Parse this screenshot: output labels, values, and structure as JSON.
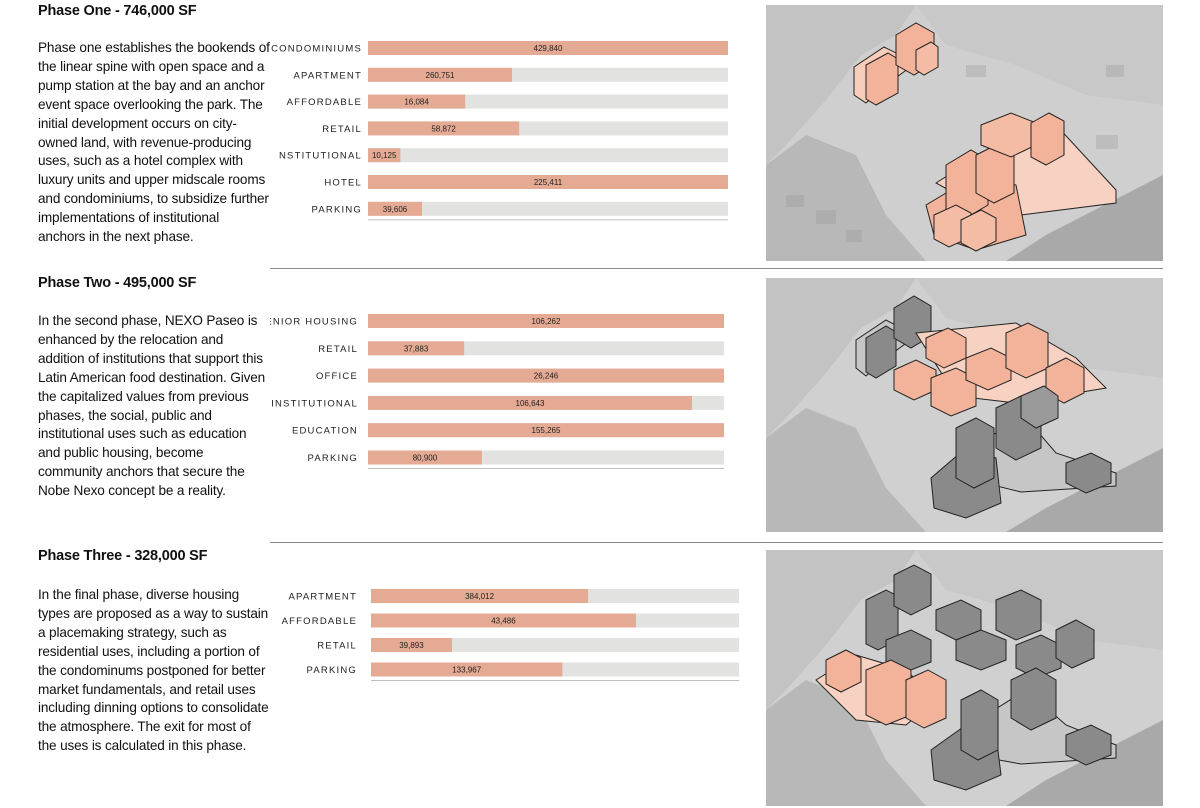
{
  "colors": {
    "bar_fill": "#e4aa93",
    "track": "#e2e3e0",
    "highlight_block": "#f2b39a",
    "grey_block": "#8a8a8a"
  },
  "sections": [
    {
      "title": "Phase One - 746,000 SF",
      "body": "Phase one establishes the bookends of the linear spine with open space and a pump station at the bay and an anchor event space overlooking the park. The initial development occurs on city-owned land, with revenue-producing uses, such as a hotel complex with luxury units and upper midscale rooms and condominiums, to subsidize further implementations of institutional anchors in the next phase."
    },
    {
      "title": "Phase Two - 495,000 SF",
      "body": "In the second phase, NEXO Paseo is enhanced by the relocation and addition of institutions that support this Latin American food destination. Given the capitalized values from previous phases, the social, public and institutional uses such as education and public housing, become community anchors that secure the Nobe Nexo concept be a reality."
    },
    {
      "title": "Phase Three - 328,000 SF",
      "body": "In the final phase, diverse housing types are proposed as a way to sustain a placemaking strategy, such as residential uses, including a portion of the condominums postponed for better market fundamentals, and retail uses including dinning options to consolidate the atmosphere. The exit for most of the uses is calculated in this phase."
    }
  ],
  "chart_data": [
    {
      "type": "bar",
      "orientation": "horizontal",
      "categories": [
        "CONDOMINIUMS",
        "APARTMENT",
        "AFFORDABLE",
        "RETAIL",
        "NSTITUTIONAL",
        "HOTEL",
        "PARKING"
      ],
      "values": [
        429840,
        260751,
        16084,
        58872,
        10125,
        225411,
        39606
      ],
      "labels": [
        "429,840",
        "260,751",
        "16,084",
        "58,872",
        "10,125",
        "225,411",
        "39,606"
      ],
      "fill_fraction": [
        1.0,
        0.4,
        0.27,
        0.42,
        0.09,
        1.0,
        0.15
      ]
    },
    {
      "type": "bar",
      "orientation": "horizontal",
      "categories": [
        "SENIOR HOUSING",
        "RETAIL",
        "OFFICE",
        "INSTITUTIONAL",
        "EDUCATION",
        "PARKING"
      ],
      "values": [
        106262,
        37883,
        26246,
        106643,
        155265,
        80900
      ],
      "labels": [
        "106,262",
        "37,883",
        "26,246",
        "106,643",
        "155,265",
        "80,900"
      ],
      "fill_fraction": [
        1.0,
        0.27,
        1.0,
        0.91,
        1.0,
        0.32
      ]
    },
    {
      "type": "bar",
      "orientation": "horizontal",
      "categories": [
        "APARTMENT",
        "AFFORDABLE",
        "RETAIL",
        "PARKING"
      ],
      "values": [
        384012,
        43486,
        39893,
        133967
      ],
      "labels": [
        "384,012",
        "43,486",
        "39,893",
        "133,967"
      ],
      "fill_fraction": [
        0.59,
        0.72,
        0.22,
        0.52
      ]
    }
  ]
}
